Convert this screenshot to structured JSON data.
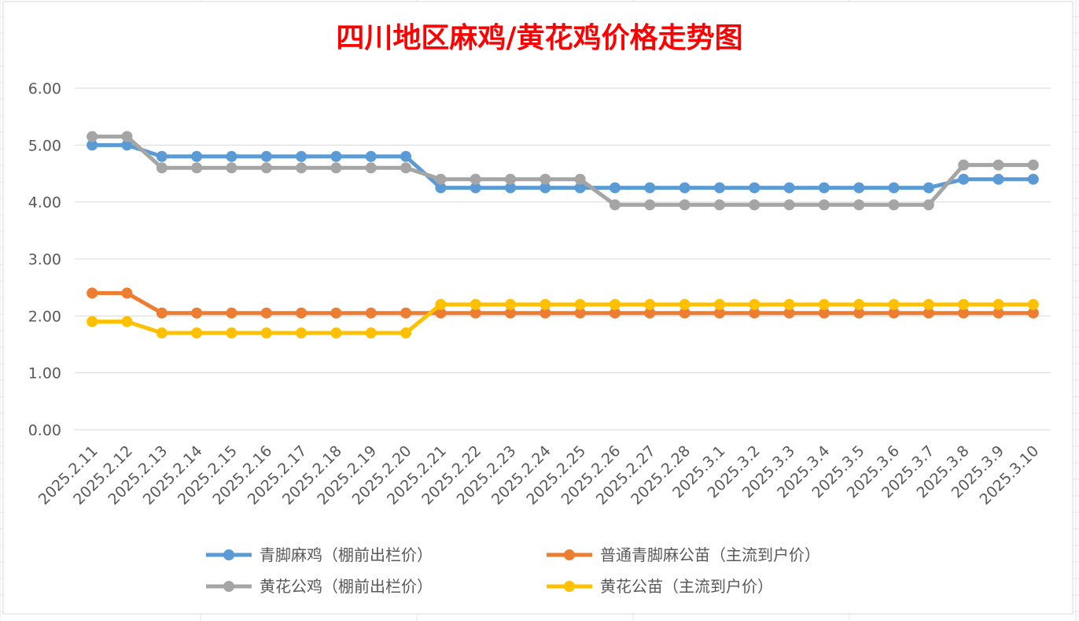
{
  "chart_data": {
    "type": "line",
    "title": "四川地区麻鸡/黄花鸡价格走势图",
    "xlabel": "",
    "ylabel": "",
    "ylim": [
      0,
      6
    ],
    "yticks": [
      "0.00",
      "1.00",
      "2.00",
      "3.00",
      "4.00",
      "5.00",
      "6.00"
    ],
    "grid": true,
    "legend_position": "bottom",
    "categories": [
      "2025.2.11",
      "2025.2.12",
      "2025.2.13",
      "2025.2.14",
      "2025.2.15",
      "2025.2.16",
      "2025.2.17",
      "2025.2.18",
      "2025.2.19",
      "2025.2.20",
      "2025.2.21",
      "2025.2.22",
      "2025.2.23",
      "2025.2.24",
      "2025.2.25",
      "2025.2.26",
      "2025.2.27",
      "2025.2.28",
      "2025.3.1",
      "2025.3.2",
      "2025.3.3",
      "2025.3.4",
      "2025.3.5",
      "2025.3.6",
      "2025.3.7",
      "2025.3.8",
      "2025.3.9",
      "2025.3.10"
    ],
    "series": [
      {
        "name": "青脚麻鸡（棚前出栏价）",
        "color": "#5b9bd5",
        "values": [
          5.0,
          5.0,
          4.8,
          4.8,
          4.8,
          4.8,
          4.8,
          4.8,
          4.8,
          4.8,
          4.25,
          4.25,
          4.25,
          4.25,
          4.25,
          4.25,
          4.25,
          4.25,
          4.25,
          4.25,
          4.25,
          4.25,
          4.25,
          4.25,
          4.25,
          4.4,
          4.4,
          4.4
        ]
      },
      {
        "name": "普通青脚麻公苗（主流到户价）",
        "color": "#ed7d31",
        "values": [
          2.4,
          2.4,
          2.05,
          2.05,
          2.05,
          2.05,
          2.05,
          2.05,
          2.05,
          2.05,
          2.05,
          2.05,
          2.05,
          2.05,
          2.05,
          2.05,
          2.05,
          2.05,
          2.05,
          2.05,
          2.05,
          2.05,
          2.05,
          2.05,
          2.05,
          2.05,
          2.05,
          2.05
        ]
      },
      {
        "name": "黄花公鸡（棚前出栏价）",
        "color": "#a5a5a5",
        "values": [
          5.15,
          5.15,
          4.6,
          4.6,
          4.6,
          4.6,
          4.6,
          4.6,
          4.6,
          4.6,
          4.4,
          4.4,
          4.4,
          4.4,
          4.4,
          3.95,
          3.95,
          3.95,
          3.95,
          3.95,
          3.95,
          3.95,
          3.95,
          3.95,
          3.95,
          4.65,
          4.65,
          4.65
        ]
      },
      {
        "name": "黄花公苗（主流到户价）",
        "color": "#ffc000",
        "values": [
          1.9,
          1.9,
          1.7,
          1.7,
          1.7,
          1.7,
          1.7,
          1.7,
          1.7,
          1.7,
          2.2,
          2.2,
          2.2,
          2.2,
          2.2,
          2.2,
          2.2,
          2.2,
          2.2,
          2.2,
          2.2,
          2.2,
          2.2,
          2.2,
          2.2,
          2.2,
          2.2,
          2.2
        ]
      }
    ]
  }
}
